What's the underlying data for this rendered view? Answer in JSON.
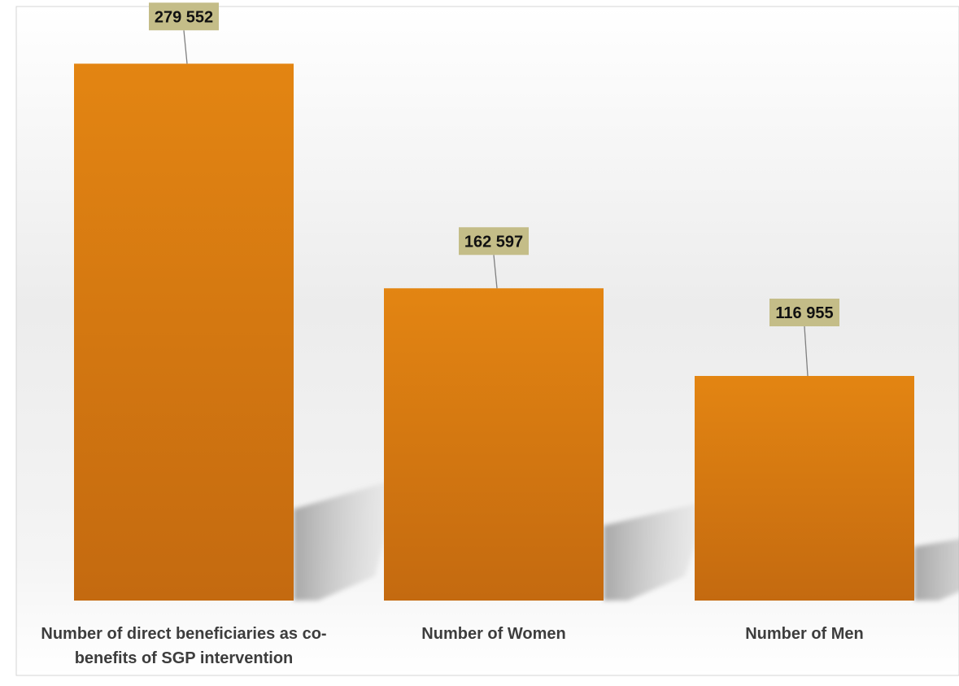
{
  "chart_data": {
    "type": "bar",
    "title": "",
    "xlabel": "",
    "ylabel": "",
    "ylim": [
      0,
      300000
    ],
    "grid": false,
    "legend": "none",
    "categories": [
      [
        "Number of direct beneficiaries as co-",
        "benefits of SGP intervention"
      ],
      [
        "Number of Women"
      ],
      [
        "Number of Men"
      ]
    ],
    "values": [
      279552,
      162597,
      116955
    ],
    "data_labels": [
      "279 552",
      "162 597",
      "116 955"
    ],
    "colors": {
      "bar_top": "#e38512",
      "bar_bottom": "#c46a10",
      "label_box": "#c4bd88",
      "label_text": "#111111",
      "category_text": "#3d3d3d",
      "leader_line": "#7f7f7f",
      "frame": "#d4d4d4"
    }
  }
}
